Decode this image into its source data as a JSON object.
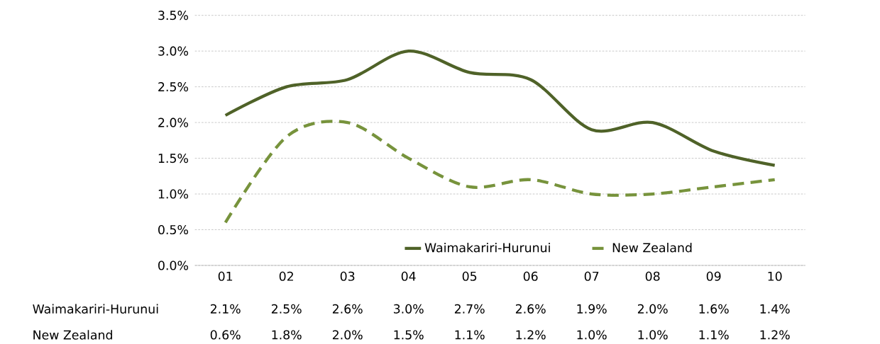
{
  "chart_data": {
    "type": "line",
    "categories": [
      "01",
      "02",
      "03",
      "04",
      "05",
      "06",
      "07",
      "08",
      "09",
      "10"
    ],
    "series": [
      {
        "name": "Waimakariri-Hurunui",
        "color": "#4f6228",
        "line_style": "solid",
        "values": [
          2.1,
          2.5,
          2.6,
          3.0,
          2.7,
          2.6,
          1.9,
          2.0,
          1.6,
          1.4
        ],
        "value_labels": [
          "2.1%",
          "2.5%",
          "2.6%",
          "3.0%",
          "2.7%",
          "2.6%",
          "1.9%",
          "2.0%",
          "1.6%",
          "1.4%"
        ]
      },
      {
        "name": "New Zealand",
        "color": "#77933c",
        "line_style": "dashed",
        "values": [
          0.6,
          1.8,
          2.0,
          1.5,
          1.1,
          1.2,
          1.0,
          1.0,
          1.1,
          1.2
        ],
        "value_labels": [
          "0.6%",
          "1.8%",
          "2.0%",
          "1.5%",
          "1.1%",
          "1.2%",
          "1.0%",
          "1.0%",
          "1.1%",
          "1.2%"
        ]
      }
    ],
    "ylim": [
      0,
      3.5
    ],
    "yticks": [
      {
        "value": 0,
        "label": "0.0%"
      },
      {
        "value": 0.5,
        "label": "0.5%"
      },
      {
        "value": 1.0,
        "label": "1.0%"
      },
      {
        "value": 1.5,
        "label": "1.5%"
      },
      {
        "value": 2.0,
        "label": "2.0%"
      },
      {
        "value": 2.5,
        "label": "2.5%"
      },
      {
        "value": 3.0,
        "label": "3.0%"
      },
      {
        "value": 3.5,
        "label": "3.5%"
      }
    ],
    "grid": "y",
    "legend": "bottom",
    "marker": "none"
  }
}
